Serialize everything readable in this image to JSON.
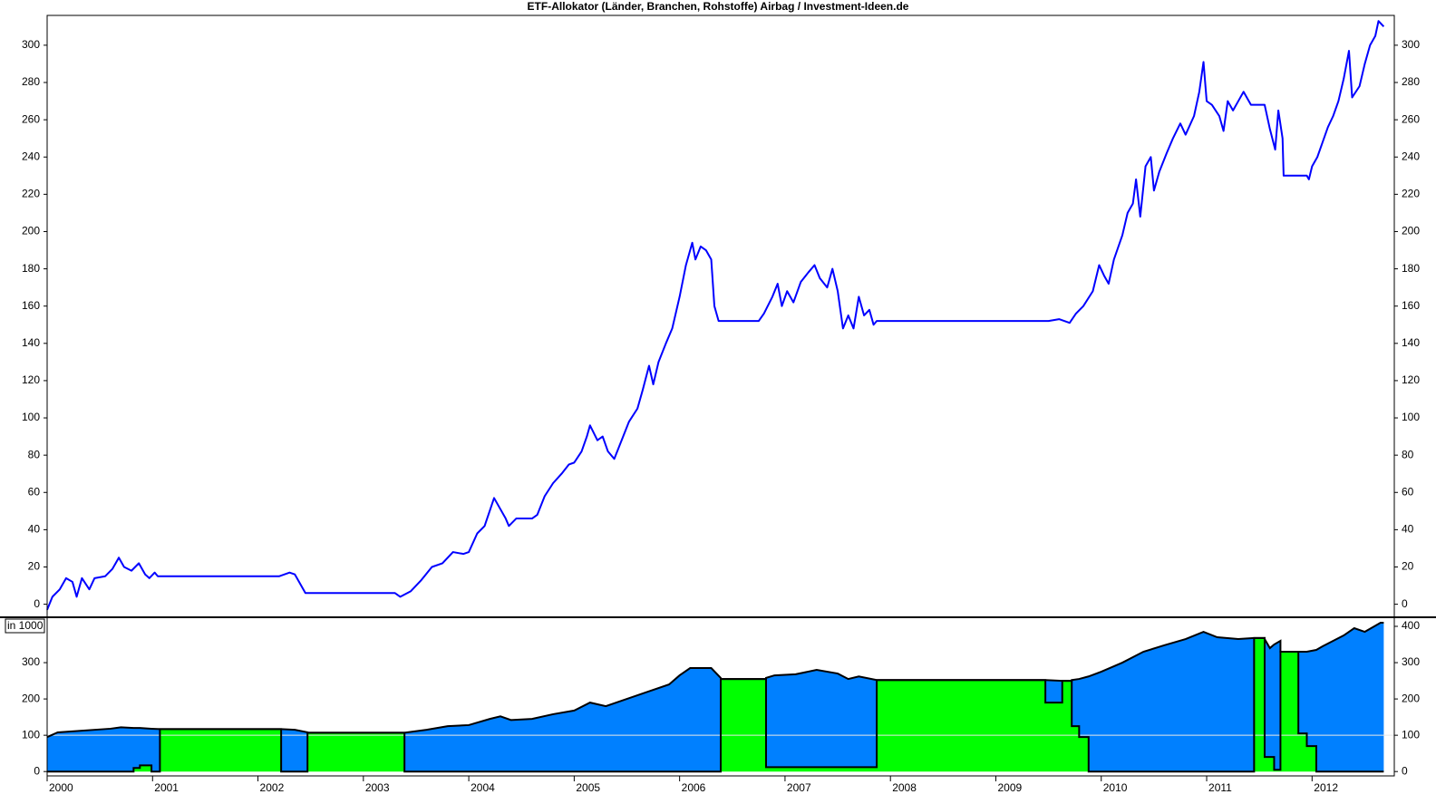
{
  "chart_data": [
    {
      "type": "line",
      "title": "ETF-Allokator (Länder, Branchen, Rohstoffe) Airbag / Investment-Ideen.de",
      "x": [
        2000.0,
        2000.05,
        2000.12,
        2000.18,
        2000.24,
        2000.28,
        2000.33,
        2000.4,
        2000.45,
        2000.55,
        2000.62,
        2000.68,
        2000.73,
        2000.8,
        2000.87,
        2000.93,
        2000.97,
        2001.02,
        2001.05,
        2002.2,
        2002.3,
        2002.35,
        2002.45,
        2003.3,
        2003.35,
        2003.45,
        2003.55,
        2003.65,
        2003.75,
        2003.85,
        2003.95,
        2004.0,
        2004.08,
        2004.15,
        2004.24,
        2004.35,
        2004.38,
        2004.45,
        2004.6,
        2004.65,
        2004.72,
        2004.8,
        2004.88,
        2004.95,
        2005.0,
        2005.07,
        2005.12,
        2005.15,
        2005.22,
        2005.27,
        2005.32,
        2005.38,
        2005.45,
        2005.52,
        2005.6,
        2005.65,
        2005.71,
        2005.75,
        2005.8,
        2005.87,
        2005.93,
        2006.0,
        2006.06,
        2006.12,
        2006.15,
        2006.2,
        2006.25,
        2006.3,
        2006.33,
        2006.37,
        2006.75,
        2006.8,
        2006.88,
        2006.93,
        2006.97,
        2007.02,
        2007.08,
        2007.15,
        2007.22,
        2007.28,
        2007.33,
        2007.4,
        2007.45,
        2007.5,
        2007.55,
        2007.6,
        2007.65,
        2007.7,
        2007.75,
        2007.8,
        2007.84,
        2007.87,
        2009.5,
        2009.6,
        2009.7,
        2009.76,
        2009.83,
        2009.92,
        2009.98,
        2010.03,
        2010.07,
        2010.12,
        2010.2,
        2010.25,
        2010.3,
        2010.33,
        2010.37,
        2010.42,
        2010.47,
        2010.5,
        2010.55,
        2010.62,
        2010.68,
        2010.75,
        2010.8,
        2010.88,
        2010.93,
        2010.97,
        2011.0,
        2011.05,
        2011.12,
        2011.16,
        2011.2,
        2011.25,
        2011.3,
        2011.35,
        2011.42,
        2011.55,
        2011.6,
        2011.65,
        2011.68,
        2011.72,
        2011.73,
        2011.95,
        2011.97,
        2012.0,
        2012.05,
        2012.1,
        2012.15,
        2012.2,
        2012.25,
        2012.3,
        2012.35,
        2012.38,
        2012.45,
        2012.5,
        2012.55,
        2012.6,
        2012.63,
        2012.68
      ],
      "series": [
        {
          "color": "#0000ff",
          "values": [
            -3,
            4,
            8,
            14,
            12,
            4,
            14,
            8,
            14,
            15,
            19,
            25,
            20,
            18,
            22,
            16,
            14,
            17,
            15,
            15,
            17,
            16,
            6,
            6,
            4,
            7,
            13,
            20,
            22,
            28,
            27,
            28,
            38,
            42,
            57,
            46,
            42,
            46,
            46,
            48,
            58,
            65,
            70,
            75,
            76,
            82,
            90,
            96,
            88,
            90,
            82,
            78,
            88,
            98,
            105,
            115,
            128,
            118,
            130,
            140,
            148,
            165,
            182,
            194,
            185,
            192,
            190,
            185,
            160,
            152,
            152,
            156,
            165,
            172,
            160,
            168,
            162,
            173,
            178,
            182,
            175,
            170,
            180,
            168,
            148,
            155,
            148,
            165,
            155,
            158,
            150,
            152,
            152,
            153,
            151,
            156,
            160,
            168,
            182,
            176,
            172,
            185,
            198,
            210,
            215,
            228,
            208,
            235,
            240,
            222,
            232,
            242,
            250,
            258,
            252,
            262,
            275,
            291,
            270,
            268,
            262,
            254,
            270,
            265,
            270,
            275,
            268,
            268,
            255,
            244,
            265,
            250,
            230,
            230,
            228,
            235,
            240,
            248,
            256,
            262,
            270,
            282,
            297,
            272,
            278,
            290,
            300,
            305,
            313,
            310
          ]
        }
      ],
      "xlim": [
        2000,
        2012.78
      ],
      "ylim": [
        -7,
        316
      ],
      "yticks": [
        0,
        20,
        40,
        60,
        80,
        100,
        120,
        140,
        160,
        180,
        200,
        220,
        240,
        260,
        280,
        300
      ]
    },
    {
      "type": "stacked_area",
      "annotation": "in 1000",
      "x": [
        2000.0,
        2000.1,
        2000.3,
        2000.6,
        2000.7,
        2000.82,
        2000.82,
        2000.88,
        2000.88,
        2000.99,
        2000.99,
        2001.07,
        2001.07,
        2002.22,
        2002.22,
        2002.35,
        2002.47,
        2002.47,
        2003.39,
        2003.39,
        2003.6,
        2003.8,
        2004.0,
        2004.2,
        2004.3,
        2004.4,
        2004.6,
        2004.8,
        2005.0,
        2005.15,
        2005.3,
        2005.5,
        2005.7,
        2005.9,
        2006.0,
        2006.1,
        2006.3,
        2006.39,
        2006.39,
        2006.82,
        2006.82,
        2006.9,
        2007.1,
        2007.3,
        2007.5,
        2007.6,
        2007.7,
        2007.87,
        2007.87,
        2009.47,
        2009.47,
        2009.63,
        2009.63,
        2009.72,
        2009.72,
        2009.79,
        2009.79,
        2009.88,
        2009.88,
        2010.0,
        2010.2,
        2010.4,
        2010.6,
        2010.8,
        2010.97,
        2011.1,
        2011.3,
        2011.45,
        2011.45,
        2011.55,
        2011.55,
        2011.6,
        2011.64,
        2011.64,
        2011.7,
        2011.7,
        2011.87,
        2011.87,
        2011.95,
        2011.95,
        2012.04,
        2012.04,
        2012.1,
        2012.3,
        2012.4,
        2012.5,
        2012.65,
        2012.68
      ],
      "series": [
        {
          "color": "#00ff00",
          "values": [
            0,
            0,
            0,
            0,
            0,
            0,
            10,
            10,
            17,
            17,
            0,
            0,
            117,
            117,
            0,
            0,
            0,
            107,
            107,
            0,
            0,
            0,
            0,
            0,
            0,
            0,
            0,
            0,
            0,
            0,
            0,
            0,
            0,
            0,
            0,
            0,
            0,
            0,
            255,
            255,
            12,
            12,
            12,
            12,
            12,
            12,
            12,
            12,
            252,
            252,
            190,
            190,
            250,
            250,
            125,
            125,
            95,
            95,
            0,
            0,
            0,
            0,
            0,
            0,
            0,
            0,
            0,
            0,
            368,
            368,
            40,
            40,
            40,
            5,
            5,
            330,
            330,
            105,
            105,
            70,
            70,
            0,
            0,
            0,
            0,
            0,
            0,
            0
          ]
        },
        {
          "color": "#0080ff",
          "values": [
            95,
            108,
            112,
            118,
            122,
            120,
            110,
            110,
            103,
            101,
            118,
            117,
            0,
            0,
            117,
            115,
            108,
            0,
            0,
            107,
            115,
            125,
            128,
            145,
            152,
            142,
            145,
            158,
            168,
            190,
            180,
            200,
            220,
            240,
            265,
            285,
            285,
            258,
            0,
            0,
            246,
            253,
            256,
            268,
            258,
            243,
            250,
            240,
            0,
            0,
            62,
            60,
            0,
            0,
            127,
            130,
            160,
            167,
            262,
            275,
            300,
            330,
            348,
            365,
            385,
            370,
            365,
            368,
            0,
            0,
            325,
            300,
            310,
            345,
            355,
            0,
            0,
            225,
            225,
            260,
            265,
            335,
            345,
            375,
            395,
            385,
            410,
            410
          ]
        }
      ],
      "reference_line": 100,
      "xlim": [
        2000,
        2012.78
      ],
      "xticks": [
        2000,
        2001,
        2002,
        2003,
        2004,
        2005,
        2006,
        2007,
        2008,
        2009,
        2010,
        2011,
        2012
      ],
      "ylim": [
        -12,
        425
      ],
      "yticks": [
        0,
        100,
        200,
        300
      ],
      "y2lim": [
        -12,
        425
      ],
      "y2ticks": [
        0,
        100,
        200,
        300,
        400
      ]
    }
  ]
}
